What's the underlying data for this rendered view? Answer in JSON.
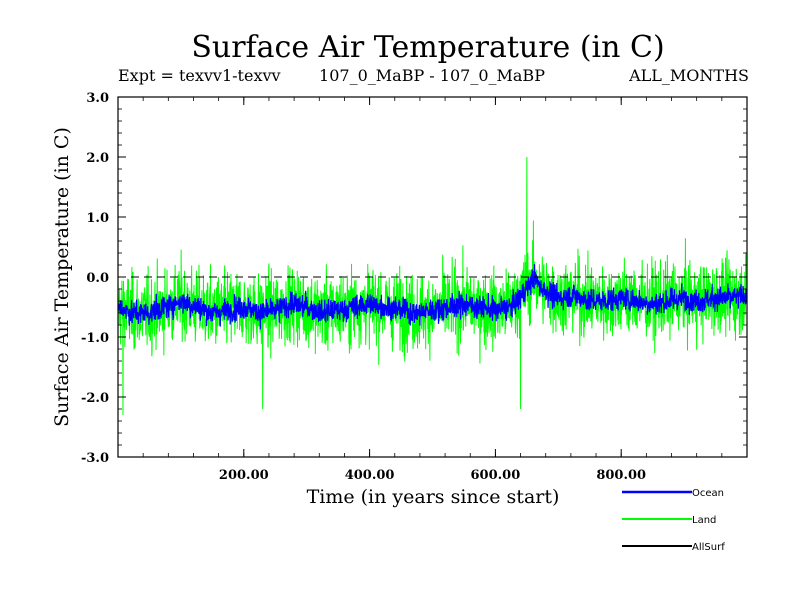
{
  "chart_data": {
    "type": "line",
    "title": "Surface Air Temperature (in C)",
    "subtitle_left": "Expt = texvv1-texvv",
    "subtitle_center": "107_0_MaBP - 107_0_MaBP",
    "subtitle_right": "ALL_MONTHS",
    "xlabel": "Time (in years since start)",
    "ylabel": "Surface Air Temperature (in C)",
    "xlim": [
      0,
      1000
    ],
    "ylim": [
      -3.0,
      3.0
    ],
    "x_ticks": [
      200,
      400,
      600,
      800
    ],
    "x_tick_labels": [
      "200.00",
      "400.00",
      "600.00",
      "800.00"
    ],
    "y_ticks": [
      -3.0,
      -2.0,
      -1.0,
      0.0,
      1.0,
      2.0,
      3.0
    ],
    "y_tick_labels": [
      "-3.0",
      "-2.0",
      "-1.0",
      "0.0",
      "1.0",
      "2.0",
      "3.0"
    ],
    "reference_line": {
      "y": 0.0,
      "style": "dashed"
    },
    "series": [
      {
        "name": "Land",
        "color": "#00ff00",
        "x": [
          0,
          25,
          50,
          75,
          100,
          125,
          150,
          175,
          200,
          225,
          250,
          275,
          300,
          325,
          350,
          375,
          400,
          425,
          450,
          475,
          500,
          525,
          550,
          575,
          600,
          625,
          650,
          660,
          675,
          700,
          725,
          750,
          775,
          800,
          825,
          850,
          875,
          900,
          925,
          950,
          975,
          1000
        ],
        "mean": [
          -0.5,
          -0.6,
          -0.6,
          -0.5,
          -0.4,
          -0.5,
          -0.6,
          -0.55,
          -0.5,
          -0.6,
          -0.55,
          -0.45,
          -0.5,
          -0.6,
          -0.55,
          -0.5,
          -0.45,
          -0.5,
          -0.55,
          -0.6,
          -0.55,
          -0.5,
          -0.45,
          -0.5,
          -0.55,
          -0.5,
          -0.2,
          0.0,
          -0.2,
          -0.35,
          -0.3,
          -0.4,
          -0.4,
          -0.35,
          -0.4,
          -0.45,
          -0.4,
          -0.35,
          -0.4,
          -0.35,
          -0.35,
          -0.3
        ],
        "amplitude": 0.8,
        "extremes": [
          {
            "x": 8,
            "y": -2.3
          },
          {
            "x": 230,
            "y": -2.2
          },
          {
            "x": 640,
            "y": -2.2
          },
          {
            "x": 650,
            "y": 2.0
          }
        ]
      },
      {
        "name": "Ocean",
        "color": "#0000ff",
        "x": [
          0,
          25,
          50,
          75,
          100,
          125,
          150,
          175,
          200,
          225,
          250,
          275,
          300,
          325,
          350,
          375,
          400,
          425,
          450,
          475,
          500,
          525,
          550,
          575,
          600,
          625,
          650,
          660,
          675,
          700,
          725,
          750,
          775,
          800,
          825,
          850,
          875,
          900,
          925,
          950,
          975,
          1000
        ],
        "mean": [
          -0.5,
          -0.6,
          -0.6,
          -0.5,
          -0.4,
          -0.5,
          -0.6,
          -0.55,
          -0.5,
          -0.6,
          -0.55,
          -0.45,
          -0.5,
          -0.6,
          -0.55,
          -0.5,
          -0.45,
          -0.5,
          -0.55,
          -0.6,
          -0.55,
          -0.5,
          -0.45,
          -0.5,
          -0.55,
          -0.5,
          -0.2,
          0.0,
          -0.2,
          -0.35,
          -0.3,
          -0.4,
          -0.4,
          -0.35,
          -0.4,
          -0.45,
          -0.4,
          -0.35,
          -0.4,
          -0.35,
          -0.35,
          -0.3
        ],
        "amplitude": 0.25
      },
      {
        "name": "AllSurf",
        "color": "#000000",
        "x": [],
        "mean": []
      }
    ],
    "legend": [
      "Ocean",
      "Land",
      "AllSurf"
    ]
  }
}
